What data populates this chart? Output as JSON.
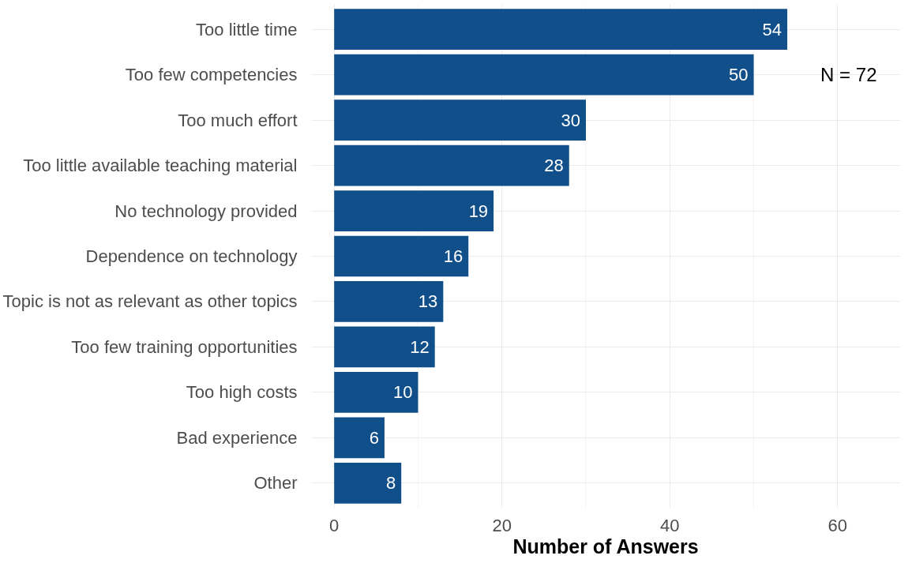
{
  "chart_data": {
    "type": "bar",
    "orientation": "horizontal",
    "xlabel": "Number of Answers",
    "categories": [
      "Too little time",
      "Too few competencies",
      "Too much effort",
      "Too little available teaching material",
      "No technology provided",
      "Dependence on technology",
      "Topic is not as relevant as other topics",
      "Too few training opportunities",
      "Too high costs",
      "Bad experience",
      "Other"
    ],
    "values": [
      54,
      50,
      30,
      28,
      19,
      16,
      13,
      12,
      10,
      6,
      8
    ],
    "color": "#114f8a",
    "data_labels": true,
    "xlim": [
      -2.7,
      67.5
    ],
    "xticks": [
      0,
      20,
      40,
      60
    ],
    "grid": true,
    "annotations": [
      "N = 72"
    ]
  }
}
